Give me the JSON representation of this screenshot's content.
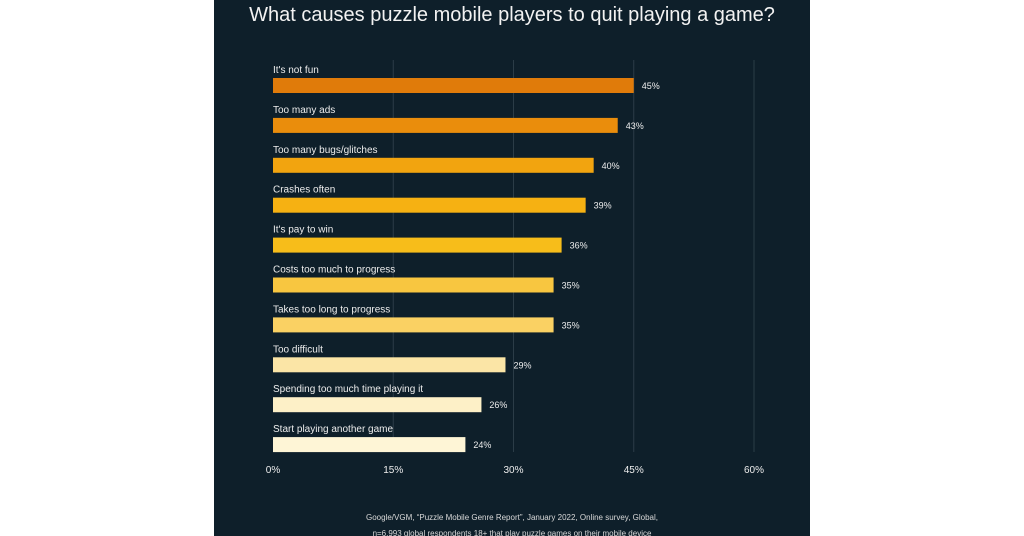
{
  "chart_data": {
    "type": "bar",
    "orientation": "horizontal",
    "title": "What causes puzzle mobile players to quit playing a game?",
    "categories": [
      "It's not fun",
      "Too many ads",
      "Too many bugs/glitches",
      "Crashes often",
      "It's pay to win",
      "Costs too much to progress",
      "Takes too long to progress",
      "Too difficult",
      "Spending too much time playing it",
      "Start playing another game"
    ],
    "values": [
      45,
      43,
      40,
      39,
      36,
      35,
      35,
      29,
      26,
      24
    ],
    "value_labels": [
      "45%",
      "43%",
      "40%",
      "39%",
      "36%",
      "35%",
      "35%",
      "29%",
      "26%",
      "24%"
    ],
    "colors": [
      "#e07b0a",
      "#ea8d0c",
      "#f2a40f",
      "#f6b112",
      "#f7bd1a",
      "#f8c640",
      "#fad163",
      "#fbe5a6",
      "#fdf0c7",
      "#fef5d6"
    ],
    "xlim": [
      0,
      60
    ],
    "xticks": [
      0,
      15,
      30,
      45,
      60
    ],
    "xtick_labels": [
      "0%",
      "15%",
      "30%",
      "45%",
      "60%"
    ],
    "grid": "vertical",
    "legend": "none"
  },
  "source_lines": [
    "Google/VGM, “Puzzle Mobile Genre Report”, January 2022, Online survey, Global,",
    "n=6,993 global respondents 18+ that play puzzle games on their mobile device"
  ]
}
